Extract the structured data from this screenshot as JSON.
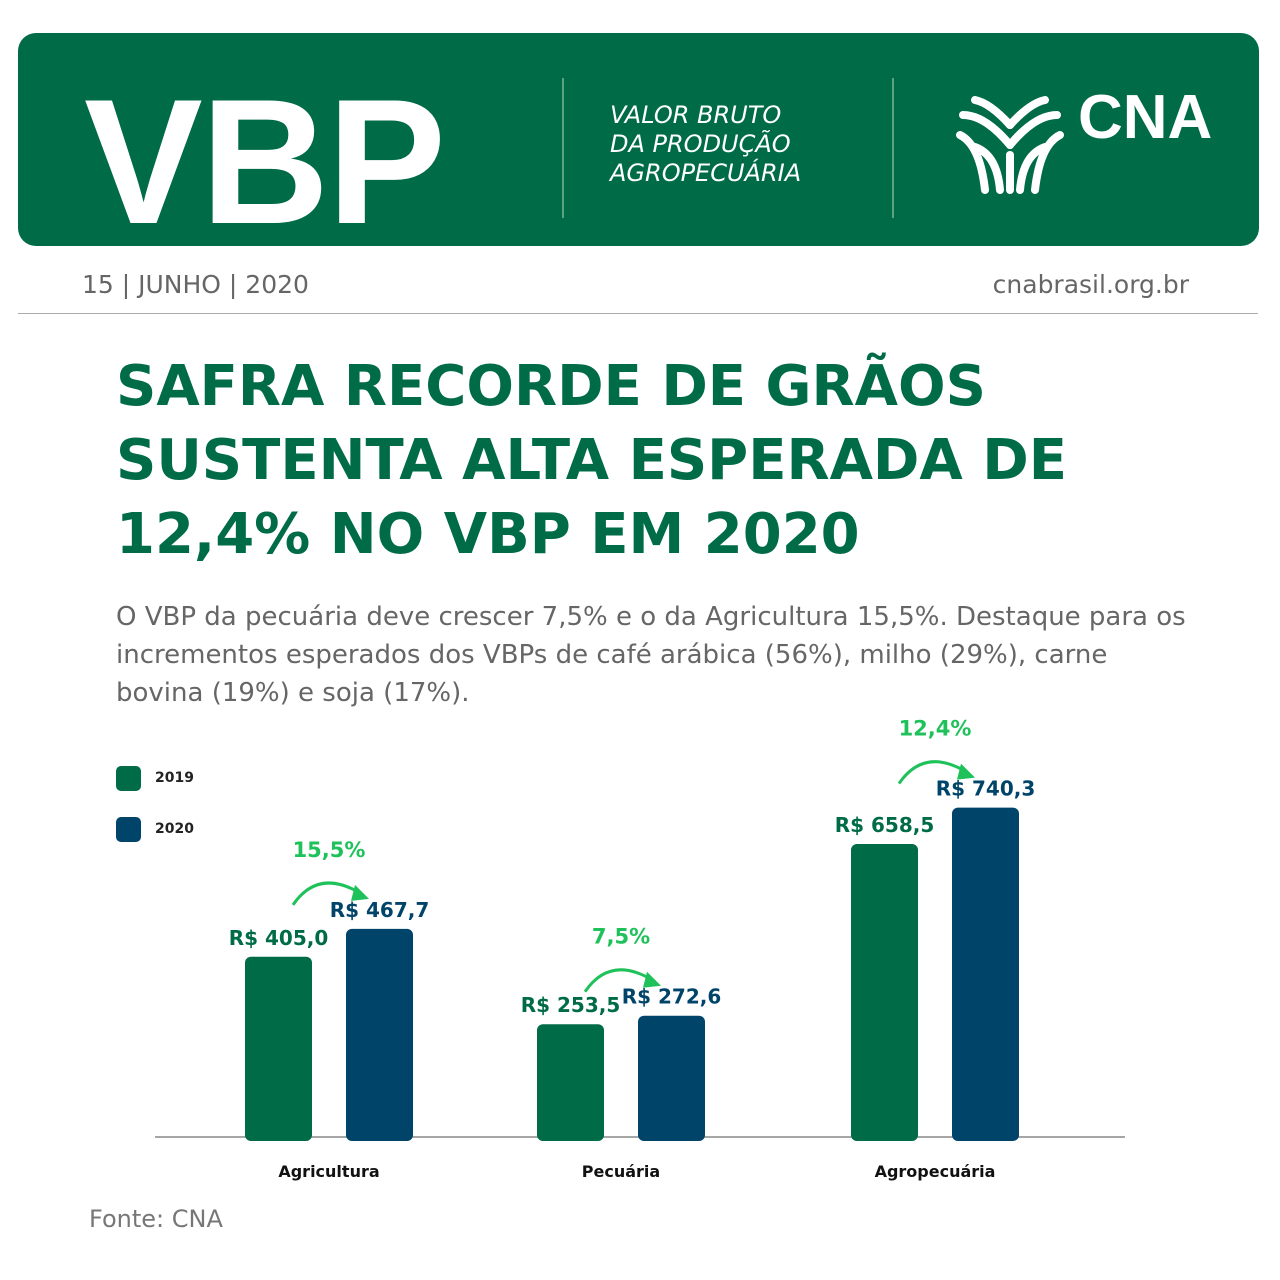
{
  "header": {
    "logo_text": "VBP",
    "subtitle_lines": [
      "VALOR BRUTO",
      "DA PRODUÇÃO",
      "AGROPECUÁRIA"
    ],
    "brand": "CNA"
  },
  "meta": {
    "date": "15 | JUNHO | 2020",
    "site": "cnabrasil.org.br"
  },
  "title": "SAFRA RECORDE DE GRÃOS SUSTENTA ALTA ESPERADA DE 12,4% NO VBP EM 2020",
  "description": "O VBP da pecuária deve crescer 7,5% e o da Agricultura 15,5%. Destaque para os incrementos esperados dos VBPs de café arábica (56%), milho (29%), carne bovina (19%) e soja (17%).",
  "source": "Fonte: CNA",
  "colors": {
    "green": "#006b47",
    "navy": "#00446a",
    "accent": "#1fc15a"
  },
  "chart_data": {
    "type": "bar",
    "categories": [
      "Agricultura",
      "Pecuária",
      "Agropecuária"
    ],
    "series": [
      {
        "name": "2019",
        "values": [
          405.0,
          253.5,
          658.5
        ],
        "labels": [
          "R$ 405,0",
          "R$ 253,5",
          "R$ 658,5"
        ]
      },
      {
        "name": "2020",
        "values": [
          467.7,
          272.6,
          740.3
        ],
        "labels": [
          "R$ 467,7",
          "R$ 272,6",
          "R$ 740,3"
        ]
      }
    ],
    "growth_labels": [
      "15,5%",
      "7,5%",
      "12,4%"
    ],
    "legend_position": "top-left",
    "grid": false
  }
}
